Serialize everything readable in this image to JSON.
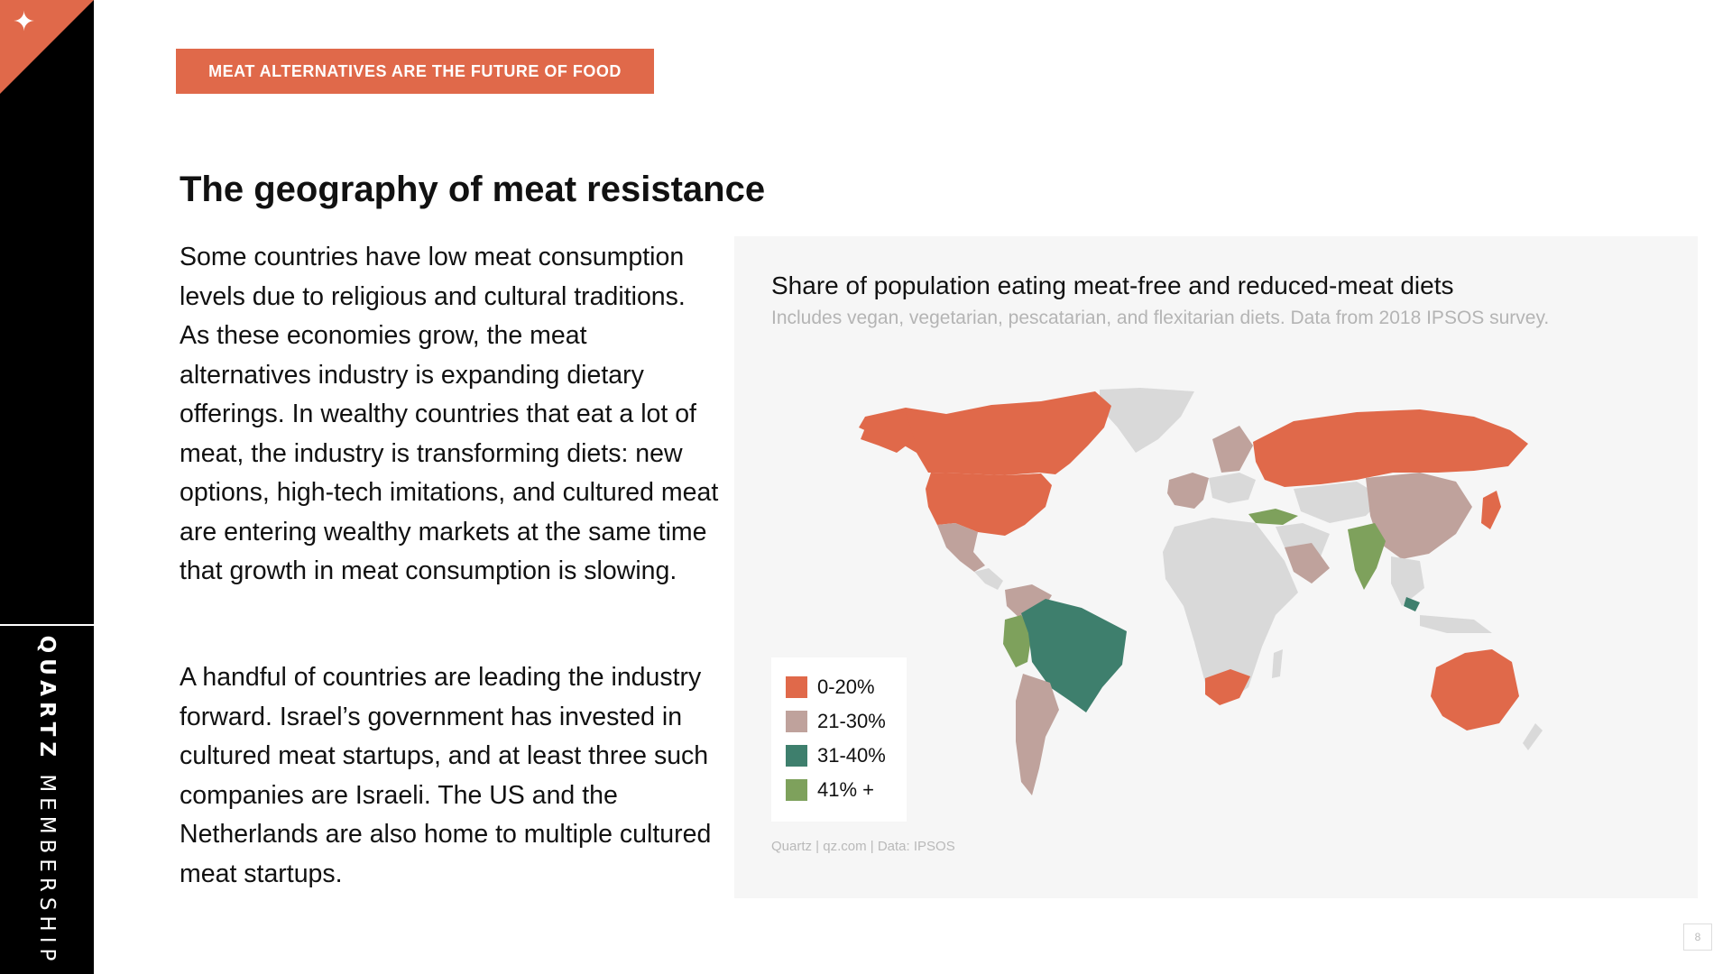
{
  "sidebar": {
    "logo_icon": "sparkle-icon",
    "brand_bold": "QUARTZ",
    "brand_light": "MEMBERSHIP"
  },
  "tag": "MEAT ALTERNATIVES ARE THE FUTURE OF FOOD",
  "title": "The geography of meat resistance",
  "paragraphs": [
    "Some countries have low meat consumption levels due to religious and cultural traditions. As these economies grow, the meat alternatives industry is expanding dietary offerings. In wealthy countries that eat a lot of meat, the industry is transforming diets: new options, high-tech imitations, and cultured meat are entering wealthy markets at the same time that growth in meat consumption is slowing.",
    "A handful of countries are leading the industry forward. Israel’s government has invested in cultured meat startups, and at least three such companies are Israeli. The US and the Netherlands are also home to multiple cultured meat startups."
  ],
  "map": {
    "title": "Share of population eating meat-free and reduced-meat diets",
    "subtitle": "Includes vegan, vegetarian, pescatarian, and flexitarian diets. Data from 2018 IPSOS survey.",
    "legend": [
      {
        "label": "0-20%",
        "color": "#e0694a"
      },
      {
        "label": "21-30%",
        "color": "#bfa29c"
      },
      {
        "label": "31-40%",
        "color": "#3e7f6d"
      },
      {
        "label": "41% +",
        "color": "#7ea15c"
      }
    ],
    "no_data_color": "#d9d9d9",
    "credit": "Quartz | qz.com | Data: IPSOS"
  },
  "page_number": "8"
}
